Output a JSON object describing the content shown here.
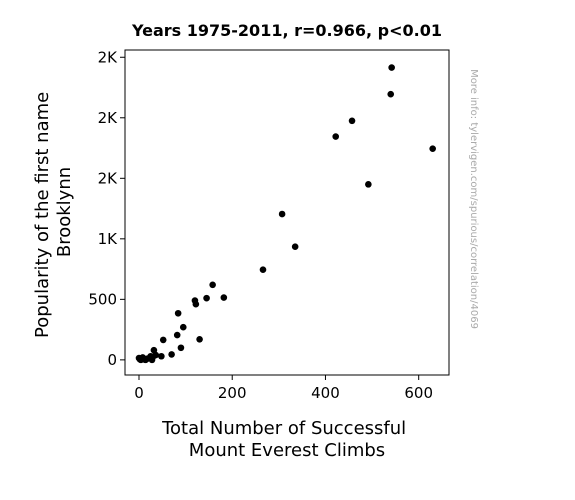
{
  "chart_data": {
    "type": "scatter",
    "title": "Years 1975-2011, r=0.966, p<0.01",
    "xlabel_lines": [
      "Total Number of Successful",
      "Mount Everest Climbs"
    ],
    "ylabel_lines": [
      "Popularity of the first name",
      "Brooklynn"
    ],
    "side_note": "More info: tylervigen.com/spurious/correlation/4069",
    "xlim": [
      -30,
      665
    ],
    "ylim": [
      -125,
      2560
    ],
    "x_ticks": [
      {
        "value": 0,
        "label": "0"
      },
      {
        "value": 200,
        "label": "200"
      },
      {
        "value": 400,
        "label": "400"
      },
      {
        "value": 600,
        "label": "600"
      }
    ],
    "y_ticks": [
      {
        "value": 0,
        "label": "0"
      },
      {
        "value": 500,
        "label": "500"
      },
      {
        "value": 1000,
        "label": "1K"
      },
      {
        "value": 1500,
        "label": "2K"
      },
      {
        "value": 2000,
        "label": "2K"
      },
      {
        "value": 2500,
        "label": "2K"
      }
    ],
    "points": [
      {
        "x": 0,
        "y": 15
      },
      {
        "x": 2,
        "y": 5
      },
      {
        "x": 4,
        "y": 0
      },
      {
        "x": 5,
        "y": 10
      },
      {
        "x": 8,
        "y": 20
      },
      {
        "x": 10,
        "y": 5
      },
      {
        "x": 14,
        "y": 0
      },
      {
        "x": 18,
        "y": 10
      },
      {
        "x": 22,
        "y": 15
      },
      {
        "x": 25,
        "y": 30
      },
      {
        "x": 28,
        "y": 0
      },
      {
        "x": 30,
        "y": 25
      },
      {
        "x": 32,
        "y": 80
      },
      {
        "x": 36,
        "y": 40
      },
      {
        "x": 48,
        "y": 30
      },
      {
        "x": 52,
        "y": 165
      },
      {
        "x": 70,
        "y": 45
      },
      {
        "x": 82,
        "y": 205
      },
      {
        "x": 84,
        "y": 385
      },
      {
        "x": 90,
        "y": 100
      },
      {
        "x": 95,
        "y": 270
      },
      {
        "x": 120,
        "y": 490
      },
      {
        "x": 122,
        "y": 460
      },
      {
        "x": 130,
        "y": 170
      },
      {
        "x": 145,
        "y": 510
      },
      {
        "x": 158,
        "y": 620
      },
      {
        "x": 182,
        "y": 515
      },
      {
        "x": 266,
        "y": 745
      },
      {
        "x": 307,
        "y": 1205
      },
      {
        "x": 335,
        "y": 935
      },
      {
        "x": 422,
        "y": 1845
      },
      {
        "x": 457,
        "y": 1975
      },
      {
        "x": 492,
        "y": 1450
      },
      {
        "x": 540,
        "y": 2195
      },
      {
        "x": 542,
        "y": 2415
      },
      {
        "x": 630,
        "y": 1745
      }
    ],
    "marker_color": "#000000",
    "grid": false,
    "legend": "none"
  }
}
